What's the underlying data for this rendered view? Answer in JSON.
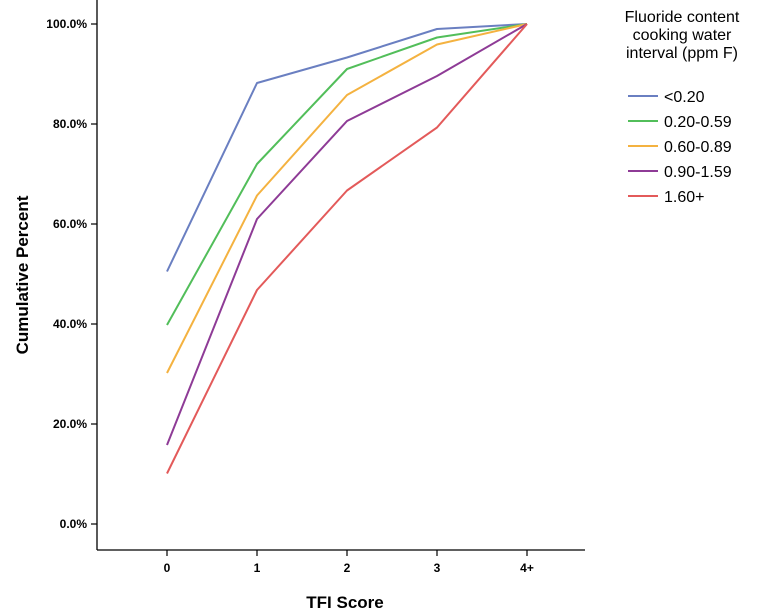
{
  "chart_data": {
    "type": "line",
    "title": "",
    "xlabel": "TFI Score",
    "ylabel": "Cumulative Percent",
    "categories": [
      "0",
      "1",
      "2",
      "3",
      "4+"
    ],
    "y_ticks": [
      "0.0%",
      "20.0%",
      "40.0%",
      "60.0%",
      "80.0%",
      "100.0%"
    ],
    "ylim": [
      0,
      100
    ],
    "grid": false,
    "legend": {
      "placement": "right",
      "title_lines": [
        "Fluoride content",
        "cooking water",
        "interval (ppm F)"
      ]
    },
    "series": [
      {
        "name": "<0.20",
        "color": "#6a7fc1",
        "values": [
          50.5,
          88.2,
          93.3,
          99.0,
          100.0
        ]
      },
      {
        "name": "0.20-0.59",
        "color": "#52be5a",
        "values": [
          39.8,
          72.0,
          91.0,
          97.3,
          100.0
        ]
      },
      {
        "name": "0.60-0.89",
        "color": "#f4b240",
        "values": [
          30.2,
          65.7,
          85.8,
          95.9,
          100.0
        ]
      },
      {
        "name": "0.90-1.59",
        "color": "#8e3b96",
        "values": [
          15.8,
          61.0,
          80.6,
          89.6,
          100.0
        ]
      },
      {
        "name": "1.60+",
        "color": "#e35a5a",
        "values": [
          10.1,
          46.8,
          66.7,
          79.3,
          100.0
        ]
      }
    ]
  }
}
